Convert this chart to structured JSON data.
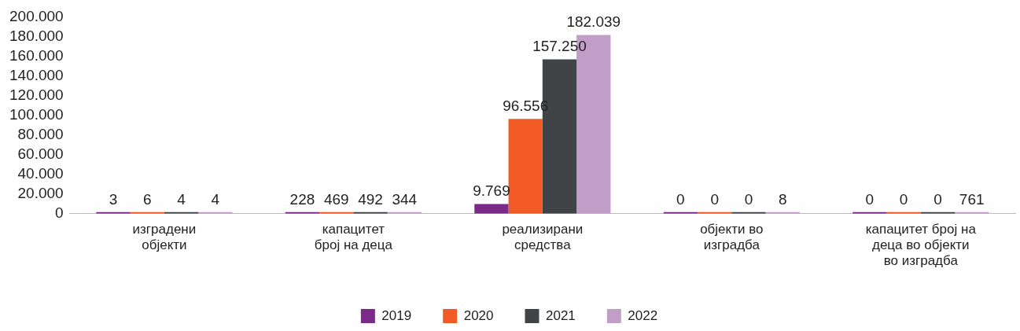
{
  "chart_data": {
    "type": "bar",
    "categories": [
      "изградени\nобјекти",
      "капацитет\nброј на деца",
      "реализирани\nсредства",
      "објекти во\nизградба",
      "капацитет број на\nдеца во објекти\nво изградба"
    ],
    "series": [
      {
        "name": "2019",
        "color": "#7b2a8a",
        "values": [
          3,
          228,
          9769,
          0,
          0
        ],
        "value_labels": [
          "3",
          "228",
          "9.769",
          "0",
          "0"
        ]
      },
      {
        "name": "2020",
        "color": "#f15a24",
        "values": [
          6,
          469,
          96556,
          0,
          0
        ],
        "value_labels": [
          "6",
          "469",
          "96.556",
          "0",
          "0"
        ]
      },
      {
        "name": "2021",
        "color": "#404446",
        "values": [
          4,
          492,
          157250,
          0,
          0
        ],
        "value_labels": [
          "4",
          "492",
          "157.250",
          "0",
          "0"
        ]
      },
      {
        "name": "2022",
        "color": "#c09ec7",
        "values": [
          4,
          344,
          182039,
          8,
          761
        ],
        "value_labels": [
          "4",
          "344",
          "182.039",
          "8",
          "761"
        ]
      }
    ],
    "ylim": [
      0,
      200000
    ],
    "yticks": [
      {
        "value": 0,
        "label": "0"
      },
      {
        "value": 20000,
        "label": "20.000"
      },
      {
        "value": 40000,
        "label": "40.000"
      },
      {
        "value": 60000,
        "label": "60.000"
      },
      {
        "value": 80000,
        "label": "80.000"
      },
      {
        "value": 100000,
        "label": "100.000"
      },
      {
        "value": 120000,
        "label": "120.000"
      },
      {
        "value": 140000,
        "label": "140.000"
      },
      {
        "value": 160000,
        "label": "160.000"
      },
      {
        "value": 180000,
        "label": "180.000"
      },
      {
        "value": 200000,
        "label": "200.000"
      }
    ],
    "grid": false,
    "legend": "bottom"
  }
}
